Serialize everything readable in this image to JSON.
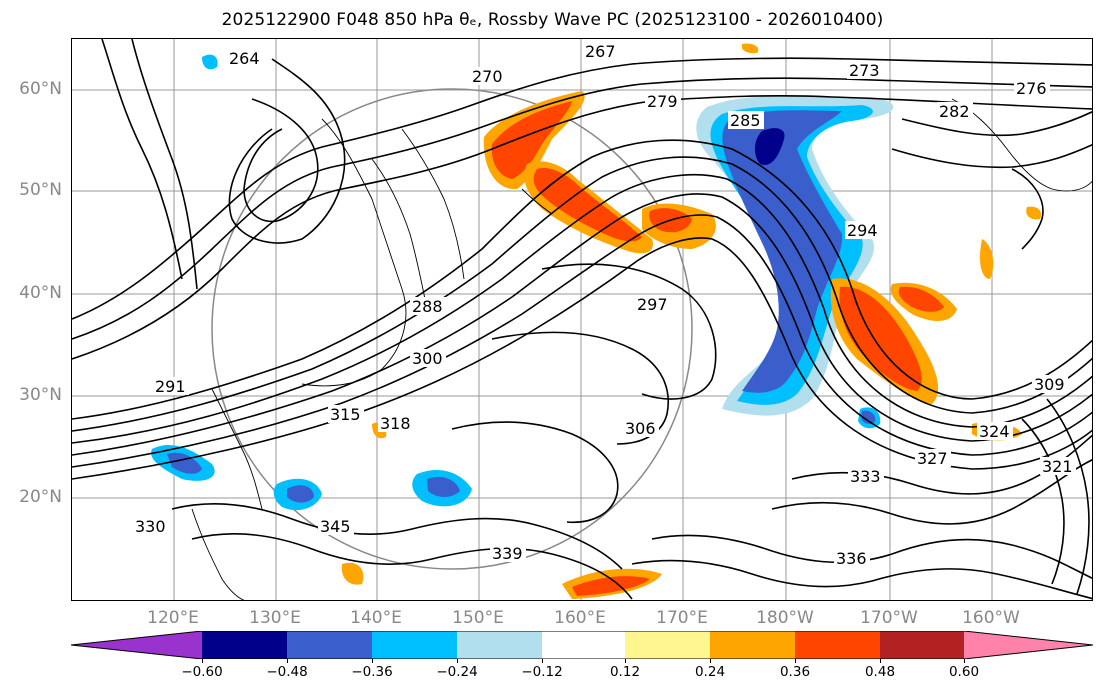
{
  "title": "2025122900 F048 850 hPa θₑ, Rossby Wave PC (2025123100 - 2026010400)",
  "lat_labels": [
    "60°N",
    "50°N",
    "40°N",
    "30°N",
    "20°N"
  ],
  "lon_labels": [
    "120°E",
    "130°E",
    "140°E",
    "150°E",
    "160°E",
    "170°E",
    "180°W",
    "170°W",
    "160°W"
  ],
  "contour_labels": [
    "264",
    "267",
    "270",
    "273",
    "276",
    "279",
    "282",
    "285",
    "288",
    "291",
    "294",
    "297",
    "300",
    "306",
    "309",
    "315",
    "318",
    "321",
    "324",
    "327",
    "330",
    "333",
    "336",
    "339",
    "345"
  ],
  "colorbar": {
    "ticks": [
      "−0.60",
      "−0.48",
      "−0.36",
      "−0.24",
      "−0.12",
      "0.12",
      "0.24",
      "0.36",
      "0.48",
      "0.60"
    ],
    "colors": [
      "#9a32cd",
      "#00008b",
      "#3a5fcd",
      "#00bfff",
      "#b2dfee",
      "#ffffff",
      "#fff68f",
      "#ffa500",
      "#ff4500",
      "#b22222",
      "#ff82ab"
    ]
  }
}
